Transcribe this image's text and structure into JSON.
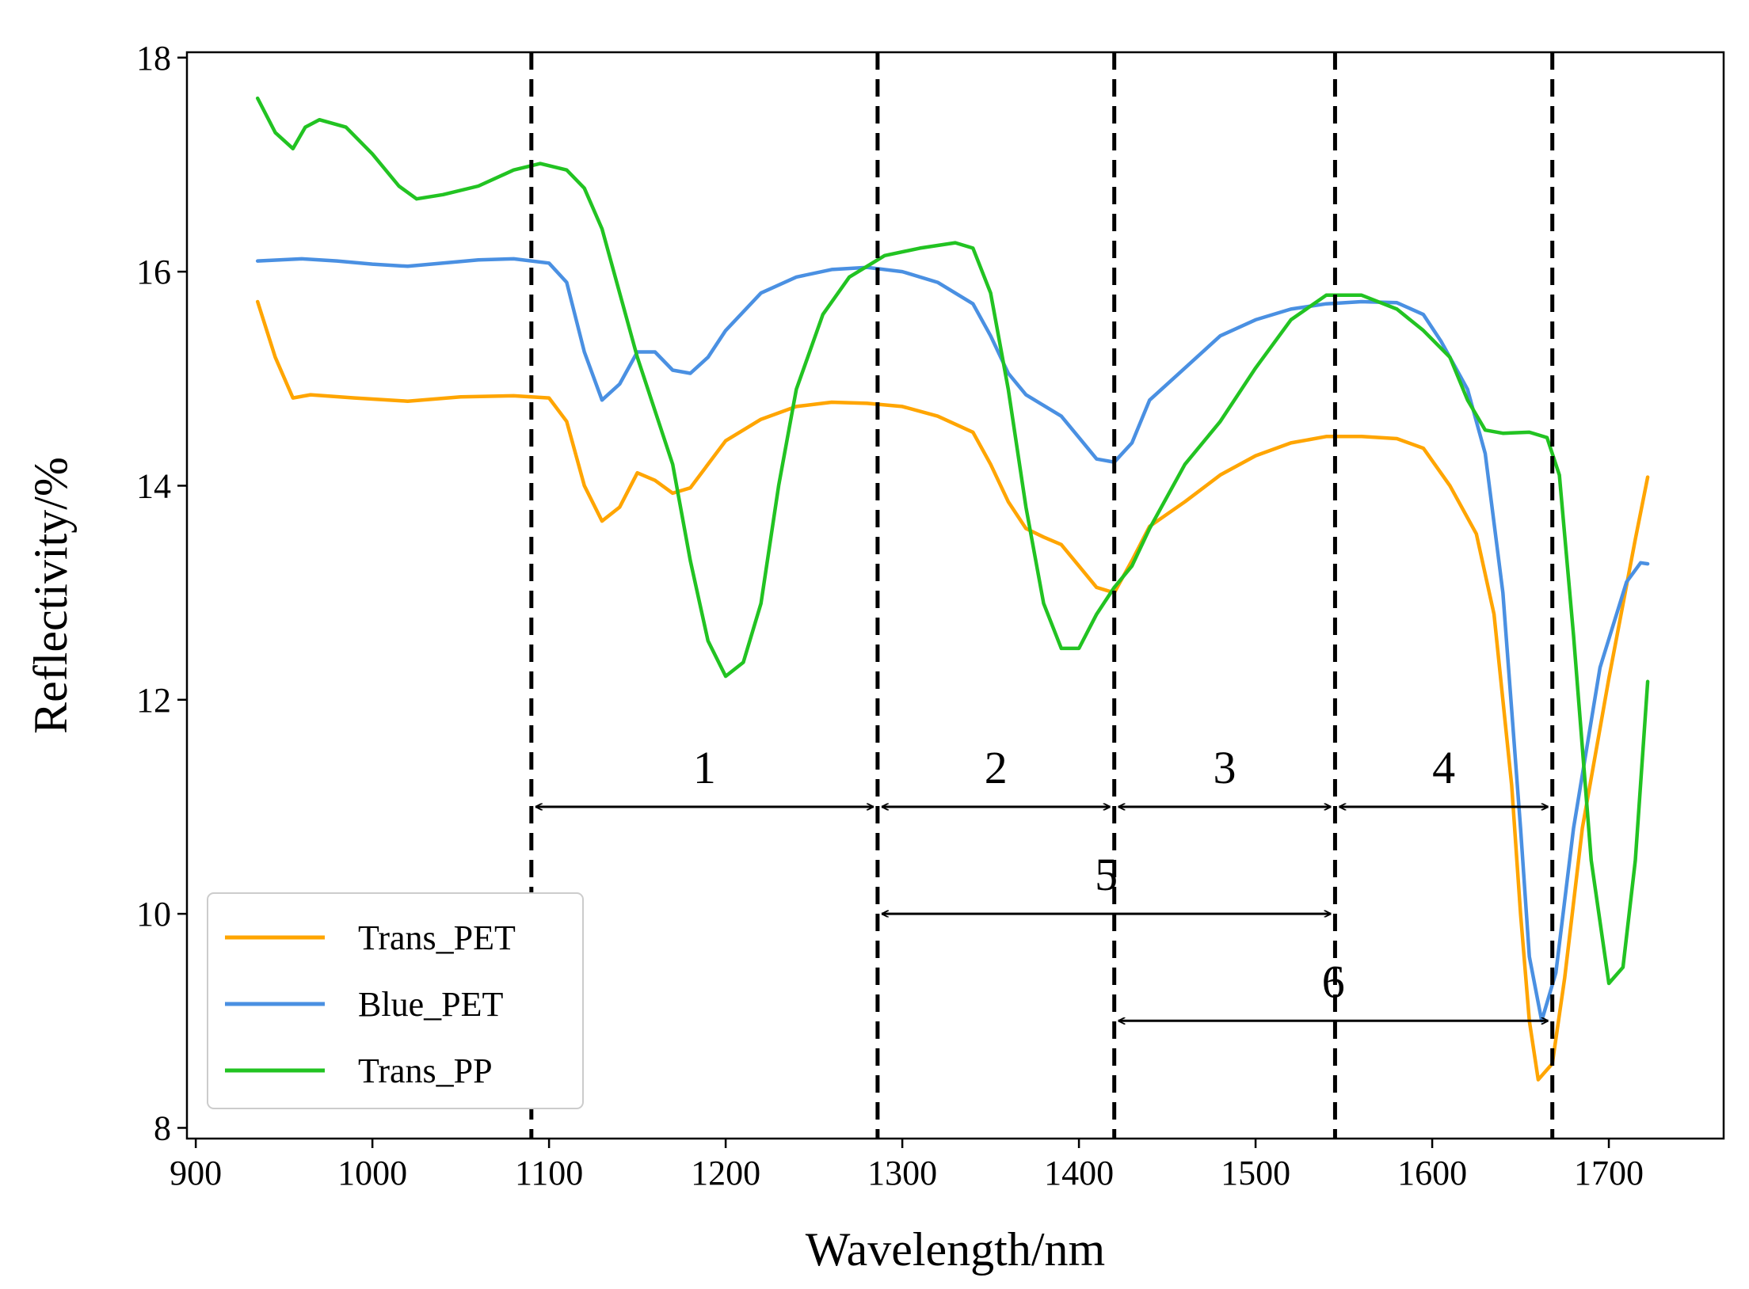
{
  "chart_data": {
    "type": "line",
    "xlabel": "Wavelength/nm",
    "ylabel": "Reflectivity/%",
    "xlim": [
      895,
      1765
    ],
    "ylim": [
      7.9,
      18.05
    ],
    "xticks": [
      900,
      1000,
      1100,
      1200,
      1300,
      1400,
      1500,
      1600,
      1700
    ],
    "yticks": [
      8,
      10,
      12,
      14,
      16,
      18
    ],
    "grid": false,
    "legend_position": "lower-left",
    "series": [
      {
        "name": "Trans_PET",
        "color": "#FFA500",
        "points": [
          [
            935,
            15.72
          ],
          [
            945,
            15.2
          ],
          [
            955,
            14.82
          ],
          [
            965,
            14.85
          ],
          [
            990,
            14.82
          ],
          [
            1020,
            14.79
          ],
          [
            1050,
            14.83
          ],
          [
            1080,
            14.84
          ],
          [
            1100,
            14.82
          ],
          [
            1110,
            14.6
          ],
          [
            1120,
            14.0
          ],
          [
            1130,
            13.67
          ],
          [
            1140,
            13.8
          ],
          [
            1150,
            14.12
          ],
          [
            1160,
            14.05
          ],
          [
            1170,
            13.93
          ],
          [
            1180,
            13.98
          ],
          [
            1190,
            14.2
          ],
          [
            1200,
            14.42
          ],
          [
            1220,
            14.62
          ],
          [
            1240,
            14.74
          ],
          [
            1260,
            14.78
          ],
          [
            1280,
            14.77
          ],
          [
            1300,
            14.74
          ],
          [
            1320,
            14.65
          ],
          [
            1340,
            14.5
          ],
          [
            1350,
            14.2
          ],
          [
            1360,
            13.85
          ],
          [
            1370,
            13.6
          ],
          [
            1380,
            13.52
          ],
          [
            1390,
            13.45
          ],
          [
            1400,
            13.25
          ],
          [
            1410,
            13.05
          ],
          [
            1420,
            13.0
          ],
          [
            1430,
            13.3
          ],
          [
            1440,
            13.62
          ],
          [
            1460,
            13.85
          ],
          [
            1480,
            14.1
          ],
          [
            1500,
            14.28
          ],
          [
            1520,
            14.4
          ],
          [
            1540,
            14.46
          ],
          [
            1560,
            14.46
          ],
          [
            1580,
            14.44
          ],
          [
            1595,
            14.35
          ],
          [
            1610,
            14.0
          ],
          [
            1625,
            13.55
          ],
          [
            1635,
            12.8
          ],
          [
            1645,
            11.2
          ],
          [
            1650,
            10.0
          ],
          [
            1655,
            9.0
          ],
          [
            1660,
            8.45
          ],
          [
            1668,
            8.6
          ],
          [
            1675,
            9.4
          ],
          [
            1685,
            10.8
          ],
          [
            1700,
            12.2
          ],
          [
            1715,
            13.5
          ],
          [
            1722,
            14.08
          ]
        ]
      },
      {
        "name": "Blue_PET",
        "color": "#4A90E2",
        "points": [
          [
            935,
            16.1
          ],
          [
            960,
            16.12
          ],
          [
            980,
            16.1
          ],
          [
            1000,
            16.07
          ],
          [
            1020,
            16.05
          ],
          [
            1040,
            16.08
          ],
          [
            1060,
            16.11
          ],
          [
            1080,
            16.12
          ],
          [
            1100,
            16.08
          ],
          [
            1110,
            15.9
          ],
          [
            1120,
            15.25
          ],
          [
            1130,
            14.8
          ],
          [
            1140,
            14.95
          ],
          [
            1150,
            15.25
          ],
          [
            1160,
            15.25
          ],
          [
            1170,
            15.08
          ],
          [
            1180,
            15.05
          ],
          [
            1190,
            15.2
          ],
          [
            1200,
            15.45
          ],
          [
            1220,
            15.8
          ],
          [
            1240,
            15.95
          ],
          [
            1260,
            16.02
          ],
          [
            1280,
            16.04
          ],
          [
            1300,
            16.0
          ],
          [
            1320,
            15.9
          ],
          [
            1340,
            15.7
          ],
          [
            1350,
            15.4
          ],
          [
            1360,
            15.05
          ],
          [
            1370,
            14.85
          ],
          [
            1380,
            14.75
          ],
          [
            1390,
            14.65
          ],
          [
            1400,
            14.45
          ],
          [
            1410,
            14.25
          ],
          [
            1420,
            14.22
          ],
          [
            1430,
            14.4
          ],
          [
            1440,
            14.8
          ],
          [
            1460,
            15.1
          ],
          [
            1480,
            15.4
          ],
          [
            1500,
            15.55
          ],
          [
            1520,
            15.65
          ],
          [
            1540,
            15.7
          ],
          [
            1560,
            15.72
          ],
          [
            1580,
            15.71
          ],
          [
            1595,
            15.6
          ],
          [
            1605,
            15.35
          ],
          [
            1620,
            14.9
          ],
          [
            1630,
            14.3
          ],
          [
            1640,
            13.0
          ],
          [
            1650,
            10.8
          ],
          [
            1655,
            9.6
          ],
          [
            1662,
            9.0
          ],
          [
            1670,
            9.45
          ],
          [
            1680,
            10.8
          ],
          [
            1695,
            12.3
          ],
          [
            1710,
            13.1
          ],
          [
            1718,
            13.28
          ],
          [
            1722,
            13.27
          ]
        ]
      },
      {
        "name": "Trans_PP",
        "color": "#22C322",
        "points": [
          [
            935,
            17.62
          ],
          [
            945,
            17.3
          ],
          [
            955,
            17.15
          ],
          [
            962,
            17.35
          ],
          [
            970,
            17.42
          ],
          [
            985,
            17.35
          ],
          [
            1000,
            17.1
          ],
          [
            1015,
            16.8
          ],
          [
            1025,
            16.68
          ],
          [
            1040,
            16.72
          ],
          [
            1060,
            16.8
          ],
          [
            1080,
            16.95
          ],
          [
            1095,
            17.01
          ],
          [
            1110,
            16.95
          ],
          [
            1120,
            16.78
          ],
          [
            1130,
            16.4
          ],
          [
            1140,
            15.8
          ],
          [
            1150,
            15.2
          ],
          [
            1160,
            14.7
          ],
          [
            1170,
            14.2
          ],
          [
            1180,
            13.3
          ],
          [
            1190,
            12.55
          ],
          [
            1200,
            12.22
          ],
          [
            1210,
            12.35
          ],
          [
            1220,
            12.9
          ],
          [
            1230,
            14.0
          ],
          [
            1240,
            14.9
          ],
          [
            1255,
            15.6
          ],
          [
            1270,
            15.95
          ],
          [
            1290,
            16.15
          ],
          [
            1310,
            16.22
          ],
          [
            1330,
            16.27
          ],
          [
            1340,
            16.22
          ],
          [
            1350,
            15.8
          ],
          [
            1360,
            14.9
          ],
          [
            1370,
            13.8
          ],
          [
            1380,
            12.9
          ],
          [
            1390,
            12.48
          ],
          [
            1400,
            12.48
          ],
          [
            1410,
            12.8
          ],
          [
            1420,
            13.05
          ],
          [
            1430,
            13.25
          ],
          [
            1440,
            13.6
          ],
          [
            1460,
            14.2
          ],
          [
            1480,
            14.6
          ],
          [
            1500,
            15.1
          ],
          [
            1520,
            15.55
          ],
          [
            1540,
            15.78
          ],
          [
            1560,
            15.78
          ],
          [
            1580,
            15.65
          ],
          [
            1595,
            15.45
          ],
          [
            1610,
            15.2
          ],
          [
            1620,
            14.8
          ],
          [
            1630,
            14.52
          ],
          [
            1640,
            14.49
          ],
          [
            1655,
            14.5
          ],
          [
            1665,
            14.45
          ],
          [
            1672,
            14.1
          ],
          [
            1680,
            12.6
          ],
          [
            1690,
            10.5
          ],
          [
            1700,
            9.35
          ],
          [
            1708,
            9.5
          ],
          [
            1715,
            10.5
          ],
          [
            1722,
            12.17
          ]
        ]
      }
    ],
    "dashed_lines_x": [
      1090,
      1286,
      1420,
      1545,
      1668
    ],
    "ranges": [
      {
        "label": "1",
        "from": 1090,
        "to": 1286,
        "y": 11.0
      },
      {
        "label": "2",
        "from": 1286,
        "to": 1420,
        "y": 11.0
      },
      {
        "label": "3",
        "from": 1420,
        "to": 1545,
        "y": 11.0
      },
      {
        "label": "4",
        "from": 1545,
        "to": 1668,
        "y": 11.0
      },
      {
        "label": "5",
        "from": 1286,
        "to": 1545,
        "y": 10.0
      },
      {
        "label": "6",
        "from": 1420,
        "to": 1668,
        "y": 9.0
      }
    ]
  }
}
